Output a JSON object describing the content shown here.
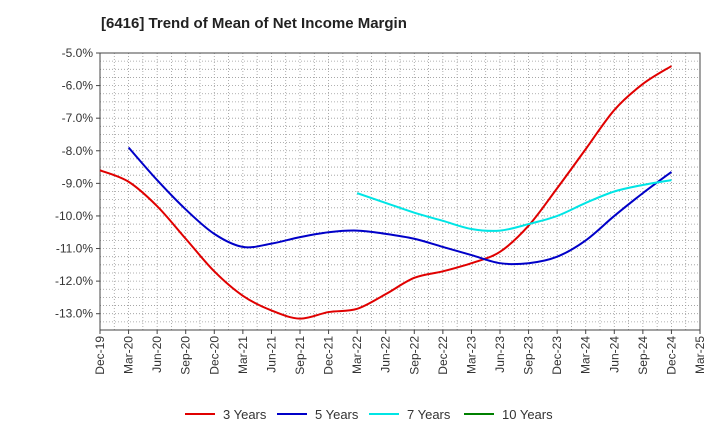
{
  "chart_data": {
    "type": "line",
    "title": "[6416]  Trend of Mean of Net Income Margin",
    "xlabel": "",
    "ylabel": "",
    "x": [
      "Dec-19",
      "Mar-20",
      "Jun-20",
      "Sep-20",
      "Dec-20",
      "Mar-21",
      "Jun-21",
      "Sep-21",
      "Dec-21",
      "Mar-22",
      "Jun-22",
      "Sep-22",
      "Dec-22",
      "Mar-23",
      "Jun-23",
      "Sep-23",
      "Dec-23",
      "Mar-24",
      "Jun-24",
      "Sep-24",
      "Dec-24",
      "Mar-25"
    ],
    "ylim": [
      -13.5,
      -5.0
    ],
    "yticks": [
      -13.0,
      -12.0,
      -11.0,
      -10.0,
      -9.0,
      -8.0,
      -7.0,
      -6.0,
      -5.0
    ],
    "ytick_labels": [
      "-13.0%",
      "-12.0%",
      "-11.0%",
      "-10.0%",
      "-9.0%",
      "-8.0%",
      "-7.0%",
      "-6.0%",
      "-5.0%"
    ],
    "grid": true,
    "legend_position": "bottom",
    "series": [
      {
        "name": "3 Years",
        "color": "#e00000",
        "values": [
          -8.6,
          -8.95,
          -9.7,
          -10.7,
          -11.7,
          -12.45,
          -12.9,
          -13.15,
          -12.95,
          -12.85,
          -12.4,
          -11.9,
          -11.7,
          -11.45,
          -11.1,
          -10.3,
          -9.15,
          -7.95,
          -6.75,
          -5.95,
          -5.4,
          null
        ]
      },
      {
        "name": "5 Years",
        "color": "#0000c8",
        "values": [
          null,
          -7.9,
          -8.9,
          -9.8,
          -10.55,
          -10.95,
          -10.85,
          -10.65,
          -10.5,
          -10.45,
          -10.55,
          -10.7,
          -10.95,
          -11.2,
          -11.45,
          -11.45,
          -11.25,
          -10.75,
          -10.0,
          -9.3,
          -8.65,
          null
        ]
      },
      {
        "name": "7 Years",
        "color": "#00e5e5",
        "values": [
          null,
          null,
          null,
          null,
          null,
          null,
          null,
          null,
          null,
          -9.3,
          -9.6,
          -9.9,
          -10.15,
          -10.4,
          -10.45,
          -10.25,
          -10.0,
          -9.6,
          -9.25,
          -9.05,
          -8.9,
          null
        ]
      },
      {
        "name": "10 Years",
        "color": "#008000",
        "values": [
          null,
          null,
          null,
          null,
          null,
          null,
          null,
          null,
          null,
          null,
          null,
          null,
          null,
          null,
          null,
          null,
          null,
          null,
          null,
          null,
          null,
          null
        ]
      }
    ]
  }
}
